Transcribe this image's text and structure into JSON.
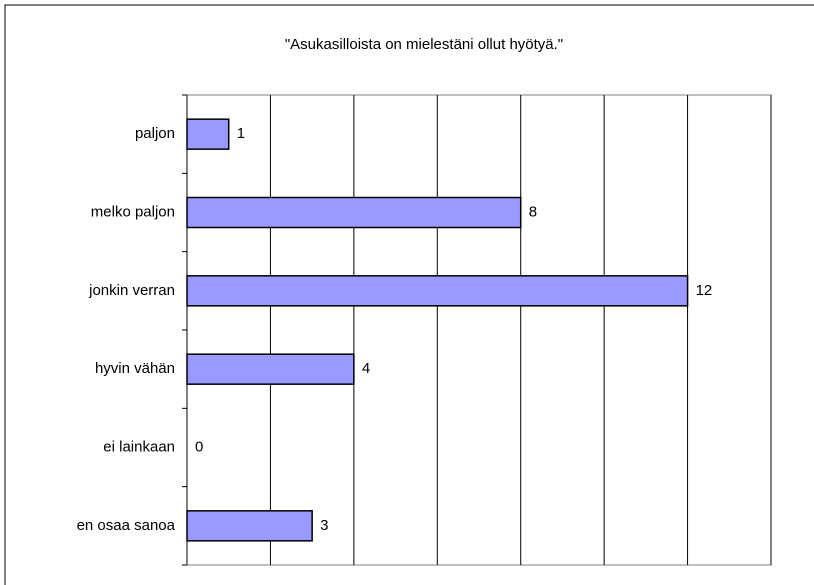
{
  "chart_data": {
    "type": "bar",
    "orientation": "horizontal",
    "title": "\"Asukasilloista on mielestäni ollut hyötyä.\"",
    "categories": [
      "paljon",
      "melko paljon",
      "jonkin verran",
      "hyvin vähän",
      "ei lainkaan",
      "en osaa sanoa"
    ],
    "values": [
      1,
      8,
      12,
      4,
      0,
      3
    ],
    "color": "#9999ff",
    "xlim": [
      0,
      14
    ],
    "xticks": [
      0,
      2,
      4,
      6,
      8,
      10,
      12,
      14
    ],
    "grid": true
  }
}
